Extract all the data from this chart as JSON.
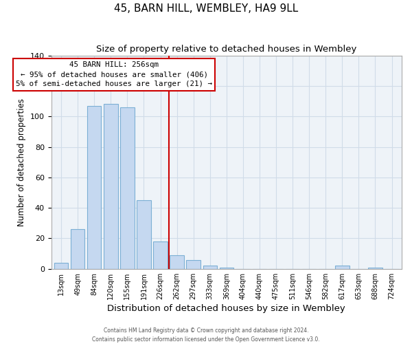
{
  "title": "45, BARN HILL, WEMBLEY, HA9 9LL",
  "subtitle": "Size of property relative to detached houses in Wembley",
  "xlabel": "Distribution of detached houses by size in Wembley",
  "ylabel": "Number of detached properties",
  "bar_labels": [
    "13sqm",
    "49sqm",
    "84sqm",
    "120sqm",
    "155sqm",
    "191sqm",
    "226sqm",
    "262sqm",
    "297sqm",
    "333sqm",
    "369sqm",
    "404sqm",
    "440sqm",
    "475sqm",
    "511sqm",
    "546sqm",
    "582sqm",
    "617sqm",
    "653sqm",
    "688sqm",
    "724sqm"
  ],
  "bar_values": [
    4,
    26,
    107,
    108,
    106,
    45,
    18,
    9,
    6,
    2,
    1,
    0,
    0,
    0,
    0,
    0,
    0,
    2,
    0,
    1,
    0
  ],
  "bar_color": "#c5d8f0",
  "bar_edge_color": "#7bafd4",
  "vline_color": "#cc0000",
  "vline_bar_index": 7,
  "ylim": [
    0,
    140
  ],
  "annotation_title": "45 BARN HILL: 256sqm",
  "annotation_line1": "← 95% of detached houses are smaller (406)",
  "annotation_line2": "5% of semi-detached houses are larger (21) →",
  "annotation_box_color": "#ffffff",
  "annotation_box_edge": "#cc0000",
  "footnote1": "Contains HM Land Registry data © Crown copyright and database right 2024.",
  "footnote2": "Contains public sector information licensed under the Open Government Licence v3.0.",
  "title_fontsize": 11,
  "subtitle_fontsize": 9.5,
  "ylabel_fontsize": 8.5,
  "xlabel_fontsize": 9.5,
  "tick_fontsize": 7,
  "ytick_fontsize": 8,
  "grid_color": "#d0dce8",
  "spine_color": "#aaaaaa",
  "background_color": "#eef3f8"
}
